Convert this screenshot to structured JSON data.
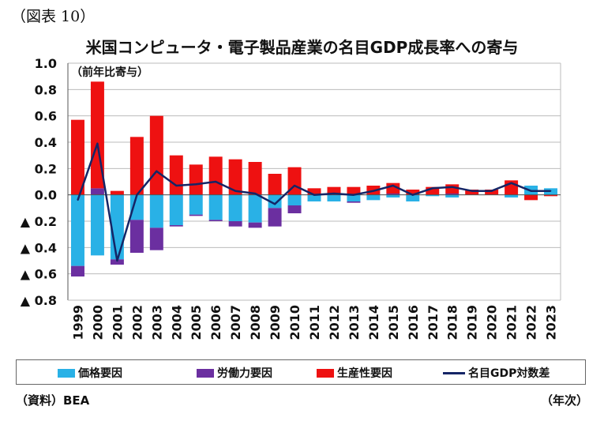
{
  "figure_label": "（図表 10）",
  "source_note": "（資料）BEA",
  "x_unit_label": "（年次）",
  "colors": {
    "price": "#29b1e6",
    "labor": "#6b2fa0",
    "productivity": "#ee1111",
    "nominal_gdp": "#152566",
    "grid": "#bbbbbb",
    "axis": "#555555"
  },
  "chart_data": {
    "type": "bar",
    "stacked": true,
    "title": "米国コンピュータ・電子製品産業の名目GDP成長率への寄与",
    "ylabel": "（前年比寄与）",
    "ylim": [
      -0.8,
      1.0
    ],
    "ytick_values": [
      1.0,
      0.8,
      0.6,
      0.4,
      0.2,
      0.0,
      -0.2,
      -0.4,
      -0.6,
      -0.8
    ],
    "ytick_labels": [
      "1.0",
      "0.8",
      "0.6",
      "0.4",
      "0.2",
      "0.0",
      "▲ 0.2",
      "▲ 0.4",
      "▲ 0.6",
      "▲ 0.8"
    ],
    "grid": true,
    "legend_position": "bottom",
    "categories": [
      "1999",
      "2000",
      "2001",
      "2002",
      "2003",
      "2004",
      "2005",
      "2006",
      "2007",
      "2008",
      "2009",
      "2010",
      "2011",
      "2012",
      "2013",
      "2014",
      "2015",
      "2016",
      "2017",
      "2018",
      "2019",
      "2020",
      "2021",
      "2022",
      "2023"
    ],
    "series": [
      {
        "name": "価格要因",
        "kind": "bar",
        "values": [
          -0.54,
          -0.46,
          -0.49,
          -0.19,
          -0.25,
          -0.23,
          -0.15,
          -0.19,
          -0.2,
          -0.21,
          -0.1,
          -0.08,
          -0.05,
          -0.05,
          -0.05,
          -0.04,
          -0.02,
          -0.05,
          -0.01,
          -0.02,
          0.0,
          0.0,
          -0.02,
          0.07,
          0.05
        ]
      },
      {
        "name": "労働力要因",
        "kind": "bar",
        "values": [
          -0.08,
          0.05,
          -0.04,
          -0.25,
          -0.17,
          -0.01,
          -0.01,
          -0.01,
          -0.04,
          -0.04,
          -0.14,
          -0.06,
          0.0,
          0.0,
          -0.01,
          0.0,
          0.01,
          0.0,
          0.0,
          0.01,
          0.0,
          0.0,
          0.0,
          0.0,
          0.0
        ]
      },
      {
        "name": "生産性要因",
        "kind": "bar",
        "values": [
          0.57,
          0.81,
          0.03,
          0.44,
          0.6,
          0.3,
          0.23,
          0.29,
          0.27,
          0.25,
          0.16,
          0.21,
          0.05,
          0.06,
          0.06,
          0.07,
          0.08,
          0.04,
          0.06,
          0.07,
          0.04,
          0.04,
          0.11,
          -0.04,
          -0.01
        ]
      },
      {
        "name": "名目GDP対数差",
        "kind": "line",
        "values": [
          -0.04,
          0.39,
          -0.5,
          0.0,
          0.18,
          0.07,
          0.08,
          0.1,
          0.03,
          0.01,
          -0.07,
          0.07,
          0.0,
          0.01,
          0.0,
          0.03,
          0.07,
          0.0,
          0.05,
          0.06,
          0.03,
          0.03,
          0.09,
          0.03,
          0.03
        ]
      }
    ]
  }
}
